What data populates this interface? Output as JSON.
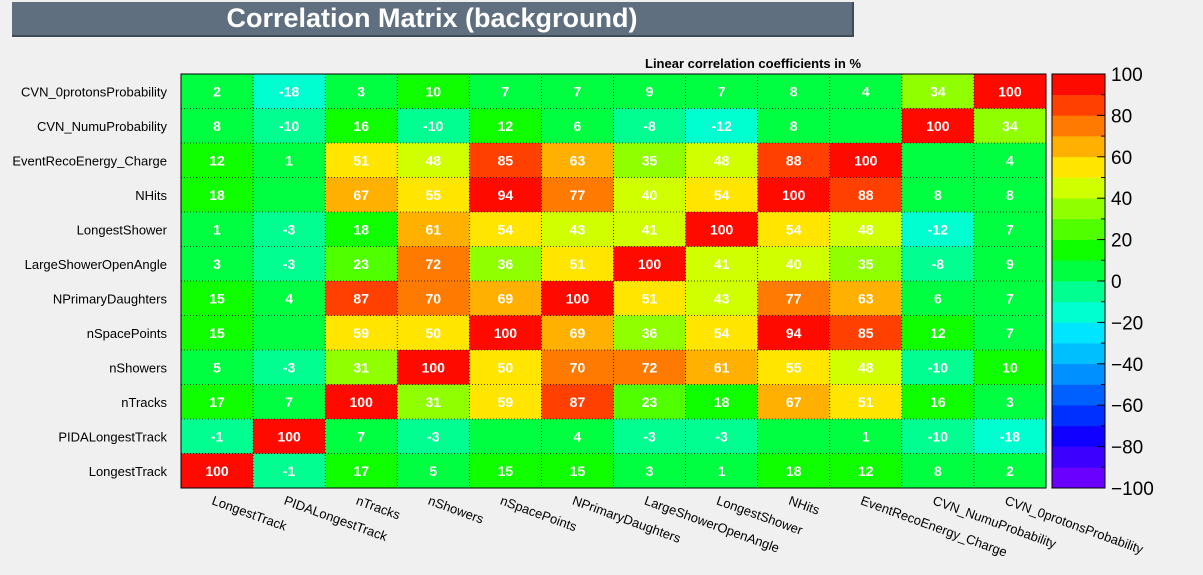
{
  "title": "Correlation Matrix (background)",
  "chart_data": {
    "type": "heatmap",
    "title": "Linear correlation coefficients in %",
    "rows": [
      "LongestTrack",
      "PIDALongestTrack",
      "nTracks",
      "nShowers",
      "nSpacePoints",
      "NPrimaryDaughters",
      "LargeShowerOpenAngle",
      "LongestShower",
      "NHits",
      "EventRecoEnergy_Charge",
      "CVN_NumuProbability",
      "CVN_0protonsProbability"
    ],
    "columns": [
      "LongestTrack",
      "PIDALongestTrack",
      "nTracks",
      "nShowers",
      "nSpacePoints",
      "NPrimaryDaughters",
      "LargeShowerOpenAngle",
      "LongestShower",
      "NHits",
      "EventRecoEnergy_Charge",
      "CVN_NumuProbability",
      "CVN_0protonsProbability"
    ],
    "values": [
      [
        100,
        -1,
        17,
        5,
        15,
        15,
        3,
        1,
        18,
        12,
        8,
        2
      ],
      [
        -1,
        100,
        7,
        -3,
        0,
        4,
        -3,
        -3,
        0,
        1,
        -10,
        -18
      ],
      [
        17,
        7,
        100,
        31,
        59,
        87,
        23,
        18,
        67,
        51,
        16,
        3
      ],
      [
        5,
        -3,
        31,
        100,
        50,
        70,
        72,
        61,
        55,
        48,
        -10,
        10
      ],
      [
        15,
        0,
        59,
        50,
        100,
        69,
        36,
        54,
        94,
        85,
        12,
        7
      ],
      [
        15,
        4,
        87,
        70,
        69,
        100,
        51,
        43,
        77,
        63,
        6,
        7
      ],
      [
        3,
        -3,
        23,
        72,
        36,
        51,
        100,
        41,
        40,
        35,
        -8,
        9
      ],
      [
        1,
        -3,
        18,
        61,
        54,
        43,
        41,
        100,
        54,
        48,
        -12,
        7
      ],
      [
        18,
        0,
        67,
        55,
        94,
        77,
        40,
        54,
        100,
        88,
        8,
        8
      ],
      [
        12,
        1,
        51,
        48,
        85,
        63,
        35,
        48,
        88,
        100,
        0,
        4
      ],
      [
        8,
        -10,
        16,
        -10,
        12,
        6,
        -8,
        -12,
        8,
        0,
        100,
        34
      ],
      [
        2,
        -18,
        3,
        10,
        7,
        7,
        9,
        7,
        8,
        4,
        34,
        100
      ]
    ],
    "zlim": [
      -100,
      100
    ],
    "colorbar_ticks": [
      "100",
      "80",
      "60",
      "40",
      "20",
      "0",
      "−20",
      "−40",
      "−60",
      "−80",
      "−100"
    ]
  }
}
